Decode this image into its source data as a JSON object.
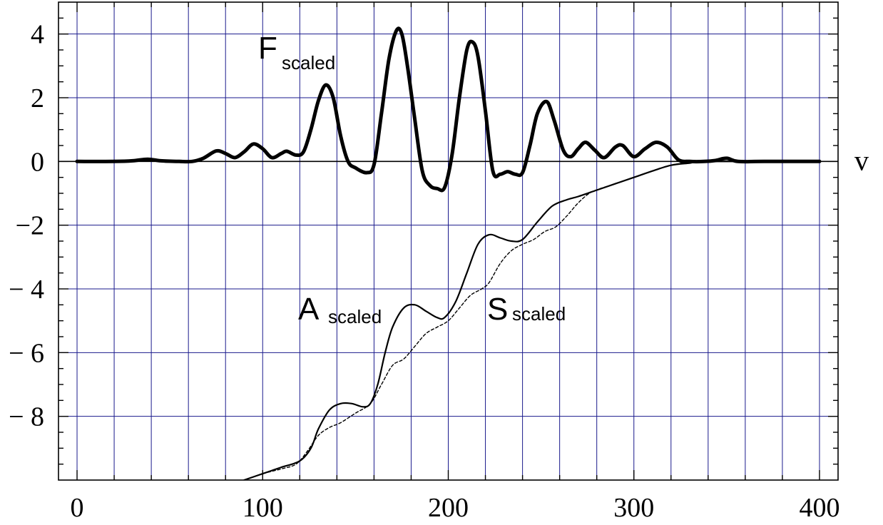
{
  "chart_data": {
    "type": "line",
    "xlabel": "",
    "ylabel": "",
    "x_axis_end_label": "v",
    "xlim": [
      -10,
      410
    ],
    "ylim": [
      -10,
      5
    ],
    "x_ticks": [
      0,
      100,
      200,
      300,
      400
    ],
    "x_tick_labels": [
      "0",
      "100",
      "200",
      "300",
      "400"
    ],
    "y_ticks": [
      4,
      2,
      0,
      -2,
      -4,
      -6,
      -8
    ],
    "y_tick_labels": [
      "4",
      "2",
      "0",
      "−2",
      "− 4",
      "− 6",
      "− 8"
    ],
    "grid": true,
    "grid_color": "#1a1a8c",
    "grid_x_step": 20,
    "grid_y_step": 2,
    "series": [
      {
        "label_main": "F",
        "label_sub": "scaled",
        "style": "thick",
        "points": [
          [
            0,
            0
          ],
          [
            20,
            0
          ],
          [
            30,
            0.02
          ],
          [
            38,
            0.07
          ],
          [
            45,
            0.02
          ],
          [
            55,
            0
          ],
          [
            62,
            0
          ],
          [
            68,
            0.1
          ],
          [
            75,
            0.33
          ],
          [
            80,
            0.25
          ],
          [
            85,
            0.12
          ],
          [
            90,
            0.3
          ],
          [
            95,
            0.55
          ],
          [
            100,
            0.4
          ],
          [
            105,
            0.12
          ],
          [
            110,
            0.25
          ],
          [
            113,
            0.32
          ],
          [
            118,
            0.2
          ],
          [
            122,
            0.3
          ],
          [
            126,
            1.0
          ],
          [
            130,
            1.9
          ],
          [
            134,
            2.4
          ],
          [
            138,
            2.0
          ],
          [
            142,
            0.8
          ],
          [
            146,
            0.0
          ],
          [
            150,
            -0.2
          ],
          [
            156,
            -0.35
          ],
          [
            160,
            -0.1
          ],
          [
            164,
            1.5
          ],
          [
            168,
            3.2
          ],
          [
            172,
            4.1
          ],
          [
            175,
            4.0
          ],
          [
            178,
            3.0
          ],
          [
            182,
            1.3
          ],
          [
            186,
            -0.3
          ],
          [
            190,
            -0.75
          ],
          [
            194,
            -0.85
          ],
          [
            198,
            -0.82
          ],
          [
            202,
            0.2
          ],
          [
            206,
            2.0
          ],
          [
            210,
            3.5
          ],
          [
            213,
            3.75
          ],
          [
            216,
            3.3
          ],
          [
            220,
            1.6
          ],
          [
            224,
            -0.3
          ],
          [
            228,
            -0.4
          ],
          [
            232,
            -0.32
          ],
          [
            236,
            -0.4
          ],
          [
            240,
            -0.35
          ],
          [
            244,
            0.5
          ],
          [
            248,
            1.5
          ],
          [
            253,
            1.88
          ],
          [
            257,
            1.3
          ],
          [
            262,
            0.35
          ],
          [
            266,
            0.15
          ],
          [
            270,
            0.4
          ],
          [
            274,
            0.6
          ],
          [
            279,
            0.35
          ],
          [
            284,
            0.12
          ],
          [
            290,
            0.45
          ],
          [
            294,
            0.5
          ],
          [
            300,
            0.15
          ],
          [
            306,
            0.4
          ],
          [
            312,
            0.6
          ],
          [
            318,
            0.45
          ],
          [
            324,
            0.05
          ],
          [
            330,
            0
          ],
          [
            338,
            0
          ],
          [
            344,
            0.03
          ],
          [
            350,
            0.1
          ],
          [
            356,
            0
          ],
          [
            370,
            0
          ],
          [
            400,
            0
          ]
        ]
      },
      {
        "label_main": "A",
        "label_sub": "scaled",
        "style": "solid",
        "points": [
          [
            90,
            -10
          ],
          [
            100,
            -9.8
          ],
          [
            110,
            -9.6
          ],
          [
            120,
            -9.4
          ],
          [
            126,
            -9.0
          ],
          [
            130,
            -8.4
          ],
          [
            136,
            -7.8
          ],
          [
            142,
            -7.6
          ],
          [
            148,
            -7.6
          ],
          [
            154,
            -7.7
          ],
          [
            158,
            -7.6
          ],
          [
            162,
            -7.0
          ],
          [
            166,
            -6.0
          ],
          [
            170,
            -5.2
          ],
          [
            176,
            -4.6
          ],
          [
            182,
            -4.5
          ],
          [
            188,
            -4.7
          ],
          [
            194,
            -4.9
          ],
          [
            198,
            -4.9
          ],
          [
            204,
            -4.4
          ],
          [
            210,
            -3.5
          ],
          [
            216,
            -2.6
          ],
          [
            222,
            -2.3
          ],
          [
            228,
            -2.4
          ],
          [
            234,
            -2.5
          ],
          [
            240,
            -2.45
          ],
          [
            248,
            -1.9
          ],
          [
            256,
            -1.4
          ],
          [
            264,
            -1.2
          ],
          [
            270,
            -1.1
          ],
          [
            280,
            -0.9
          ],
          [
            290,
            -0.7
          ],
          [
            300,
            -0.5
          ],
          [
            310,
            -0.3
          ],
          [
            320,
            -0.12
          ],
          [
            330,
            -0.05
          ],
          [
            340,
            0
          ],
          [
            400,
            0
          ]
        ]
      },
      {
        "label_main": "S",
        "label_sub": "scaled",
        "style": "dashed",
        "points": [
          [
            90,
            -10
          ],
          [
            100,
            -9.8
          ],
          [
            110,
            -9.65
          ],
          [
            118,
            -9.5
          ],
          [
            124,
            -9.1
          ],
          [
            130,
            -8.6
          ],
          [
            136,
            -8.35
          ],
          [
            142,
            -8.2
          ],
          [
            150,
            -7.9
          ],
          [
            158,
            -7.6
          ],
          [
            164,
            -7.0
          ],
          [
            170,
            -6.4
          ],
          [
            176,
            -6.2
          ],
          [
            182,
            -5.8
          ],
          [
            188,
            -5.4
          ],
          [
            194,
            -5.2
          ],
          [
            200,
            -5.0
          ],
          [
            206,
            -4.6
          ],
          [
            212,
            -4.2
          ],
          [
            218,
            -4.0
          ],
          [
            222,
            -3.8
          ],
          [
            228,
            -3.2
          ],
          [
            234,
            -2.8
          ],
          [
            240,
            -2.6
          ],
          [
            246,
            -2.45
          ],
          [
            252,
            -2.2
          ],
          [
            258,
            -2.05
          ],
          [
            264,
            -1.7
          ],
          [
            270,
            -1.3
          ],
          [
            276,
            -1.0
          ],
          [
            282,
            -0.85
          ],
          [
            290,
            -0.7
          ],
          [
            300,
            -0.5
          ],
          [
            310,
            -0.3
          ],
          [
            318,
            -0.15
          ],
          [
            326,
            -0.05
          ],
          [
            334,
            0
          ],
          [
            400,
            0
          ]
        ]
      }
    ]
  }
}
